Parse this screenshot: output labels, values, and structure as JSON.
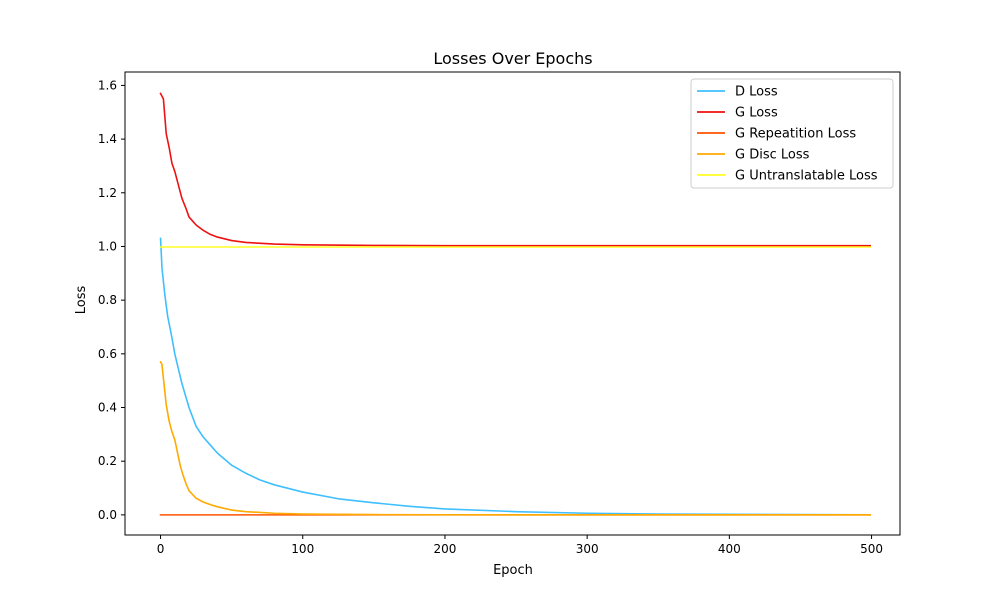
{
  "chart_data": {
    "type": "line",
    "title": "Losses Over Epochs",
    "xlabel": "Epoch",
    "ylabel": "Loss",
    "xlim": [
      -25,
      520
    ],
    "ylim": [
      -0.075,
      1.65
    ],
    "xticks": [
      0,
      100,
      200,
      300,
      400,
      500
    ],
    "yticks": [
      0.0,
      0.2,
      0.4,
      0.6,
      0.8,
      1.0,
      1.2,
      1.4,
      1.6
    ],
    "ytick_labels": [
      "0.0",
      "0.2",
      "0.4",
      "0.6",
      "0.8",
      "1.0",
      "1.2",
      "1.4",
      "1.6"
    ],
    "grid": false,
    "legend_position": "top-right",
    "series": [
      {
        "name": "D Loss",
        "color": "#3fbfff",
        "x": [
          0,
          1,
          3,
          5,
          8,
          10,
          15,
          20,
          25,
          30,
          35,
          40,
          50,
          60,
          70,
          80,
          100,
          125,
          150,
          175,
          200,
          250,
          300,
          350,
          400,
          450,
          499
        ],
        "y": [
          1.03,
          0.92,
          0.82,
          0.74,
          0.66,
          0.6,
          0.49,
          0.4,
          0.33,
          0.29,
          0.26,
          0.23,
          0.185,
          0.155,
          0.13,
          0.112,
          0.085,
          0.06,
          0.045,
          0.032,
          0.022,
          0.012,
          0.006,
          0.003,
          0.002,
          0.001,
          0.0005
        ]
      },
      {
        "name": "G Loss",
        "color": "#ee1111",
        "x": [
          0,
          2,
          4,
          6,
          8,
          10,
          12,
          15,
          18,
          20,
          25,
          30,
          35,
          40,
          50,
          60,
          80,
          100,
          150,
          200,
          300,
          400,
          499
        ],
        "y": [
          1.57,
          1.55,
          1.42,
          1.37,
          1.31,
          1.28,
          1.24,
          1.18,
          1.14,
          1.11,
          1.08,
          1.06,
          1.045,
          1.035,
          1.022,
          1.015,
          1.009,
          1.006,
          1.004,
          1.003,
          1.003,
          1.003,
          1.003
        ]
      },
      {
        "name": "G Repeatition Loss",
        "color": "#ff5500",
        "x": [
          0,
          499
        ],
        "y": [
          0.0,
          0.0
        ]
      },
      {
        "name": "G Disc Loss",
        "color": "#ffaa00",
        "x": [
          0,
          1,
          2,
          4,
          6,
          8,
          10,
          12,
          14,
          16,
          18,
          20,
          25,
          30,
          35,
          40,
          50,
          60,
          80,
          100,
          150,
          200,
          300,
          499
        ],
        "y": [
          0.57,
          0.56,
          0.51,
          0.41,
          0.35,
          0.31,
          0.28,
          0.23,
          0.18,
          0.145,
          0.115,
          0.09,
          0.062,
          0.048,
          0.038,
          0.03,
          0.018,
          0.012,
          0.006,
          0.003,
          0.001,
          0.0005,
          0.0002,
          0.0001
        ]
      },
      {
        "name": "G Untranslatable Loss",
        "color": "#ffff22",
        "x": [
          0,
          499
        ],
        "y": [
          0.998,
          0.998
        ]
      }
    ]
  }
}
